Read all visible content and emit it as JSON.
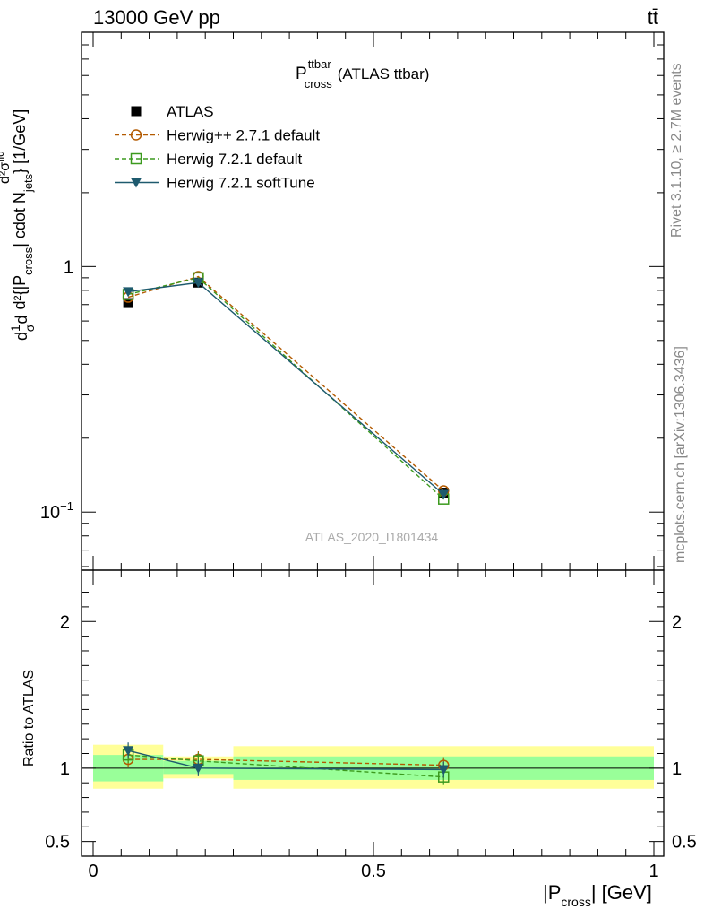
{
  "header": {
    "left_label": "13000 GeV pp",
    "right_label": "tt̄"
  },
  "side_labels": {
    "rivet": "Rivet 3.1.10, ≥ 2.7M events",
    "mcplots": "mcplots.cern.ch [arXiv:1306.3436]"
  },
  "chart_data": {
    "type": "line",
    "title": "P^{ttbar}_{cross} (ATLAS ttbar)",
    "title_main": "P",
    "title_sup": "ttbar",
    "title_sub": "cross",
    "title_suffix": "(ATLAS ttbar)",
    "analysis_label": "ATLAS_2020_I1801434",
    "ylabel": "d1/σ d d²σ^{fid} / d²{|P_cross| cdot N_jets} [1/GeV]",
    "xlabel": "|P_cross| [GeV]",
    "xlim": [
      0,
      1
    ],
    "ylim": [
      0.058,
      9.0
    ],
    "yscale": "log",
    "x_ticks": [
      "0",
      "0.5",
      "1"
    ],
    "y_ticks": [
      "1",
      "10^-1"
    ],
    "legend_placement": "top-left",
    "bins": [
      {
        "low": 0.0,
        "high": 0.125,
        "x": 0.0625
      },
      {
        "low": 0.125,
        "high": 0.25,
        "x": 0.1875
      },
      {
        "low": 0.25,
        "high": 1.0,
        "x": 0.625
      }
    ],
    "series": [
      {
        "name": "ATLAS",
        "color": "#000000",
        "marker": "square-filled",
        "dash": "none",
        "x": [
          0.0625,
          0.1875,
          0.625
        ],
        "values": [
          0.71,
          0.86,
          0.12
        ]
      },
      {
        "name": "Herwig++ 2.7.1 default",
        "color": "#b35a00",
        "marker": "circle-open",
        "dash": "dashed",
        "x": [
          0.0625,
          0.1875,
          0.625
        ],
        "values": [
          0.75,
          0.91,
          0.122
        ]
      },
      {
        "name": "Herwig 7.2.1 default",
        "color": "#3c9a1e",
        "marker": "square-open",
        "dash": "dashed",
        "x": [
          0.0625,
          0.1875,
          0.625
        ],
        "values": [
          0.77,
          0.9,
          0.113
        ]
      },
      {
        "name": "Herwig 7.2.1 softTune",
        "color": "#1e5a6e",
        "marker": "triangle-down-filled",
        "dash": "solid",
        "x": [
          0.0625,
          0.1875,
          0.625
        ],
        "values": [
          0.79,
          0.86,
          0.118
        ]
      }
    ],
    "ratio": {
      "ylabel": "Ratio to ATLAS",
      "ylim": [
        0.4,
        2.35
      ],
      "y_ticks": [
        "0.5",
        "1",
        "2"
      ],
      "band_inner": [
        {
          "low": 0.0,
          "high": 0.125,
          "lo": 0.91,
          "hi": 1.09
        },
        {
          "low": 0.125,
          "high": 0.25,
          "lo": 0.96,
          "hi": 1.05
        },
        {
          "low": 0.25,
          "high": 1.0,
          "lo": 0.92,
          "hi": 1.08
        }
      ],
      "band_outer": [
        {
          "low": 0.0,
          "high": 0.125,
          "lo": 0.86,
          "hi": 1.16
        },
        {
          "low": 0.125,
          "high": 0.25,
          "lo": 0.93,
          "hi": 1.08
        },
        {
          "low": 0.25,
          "high": 1.0,
          "lo": 0.86,
          "hi": 1.15
        }
      ],
      "series": [
        {
          "name": "Herwig++ 2.7.1 default",
          "values": [
            1.06,
            1.06,
            1.02
          ]
        },
        {
          "name": "Herwig 7.2.1 default",
          "values": [
            1.09,
            1.05,
            0.94
          ]
        },
        {
          "name": "Herwig 7.2.1 softTune",
          "values": [
            1.12,
            1.0,
            0.99
          ]
        }
      ]
    }
  }
}
